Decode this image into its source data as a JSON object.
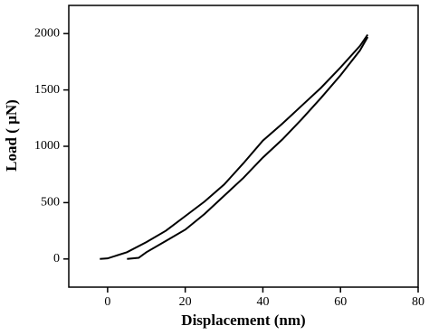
{
  "chart_data": {
    "type": "line",
    "x_label": "Displacement (nm)",
    "y_label": "Load ( µN)",
    "xlim": [
      -10,
      80
    ],
    "xticks": [
      0,
      20,
      40,
      60,
      80
    ],
    "ylim": [
      -250,
      2250
    ],
    "yticks": [
      0,
      500,
      1000,
      1500,
      2000
    ],
    "series": [
      {
        "color": "#000000",
        "x": [
          -2,
          0,
          5,
          10,
          15,
          20,
          25,
          30,
          35,
          40,
          45,
          50,
          55,
          60,
          65,
          67
        ],
        "values": [
          0,
          5,
          60,
          150,
          250,
          380,
          510,
          660,
          850,
          1050,
          1200,
          1360,
          1520,
          1700,
          1890,
          1990
        ]
      },
      {
        "color": "#000000",
        "x": [
          5,
          8,
          10,
          15,
          20,
          25,
          30,
          35,
          40,
          45,
          50,
          55,
          60,
          65,
          67
        ],
        "values": [
          0,
          10,
          60,
          160,
          260,
          400,
          560,
          720,
          900,
          1060,
          1240,
          1430,
          1630,
          1850,
          1970
        ]
      }
    ]
  }
}
